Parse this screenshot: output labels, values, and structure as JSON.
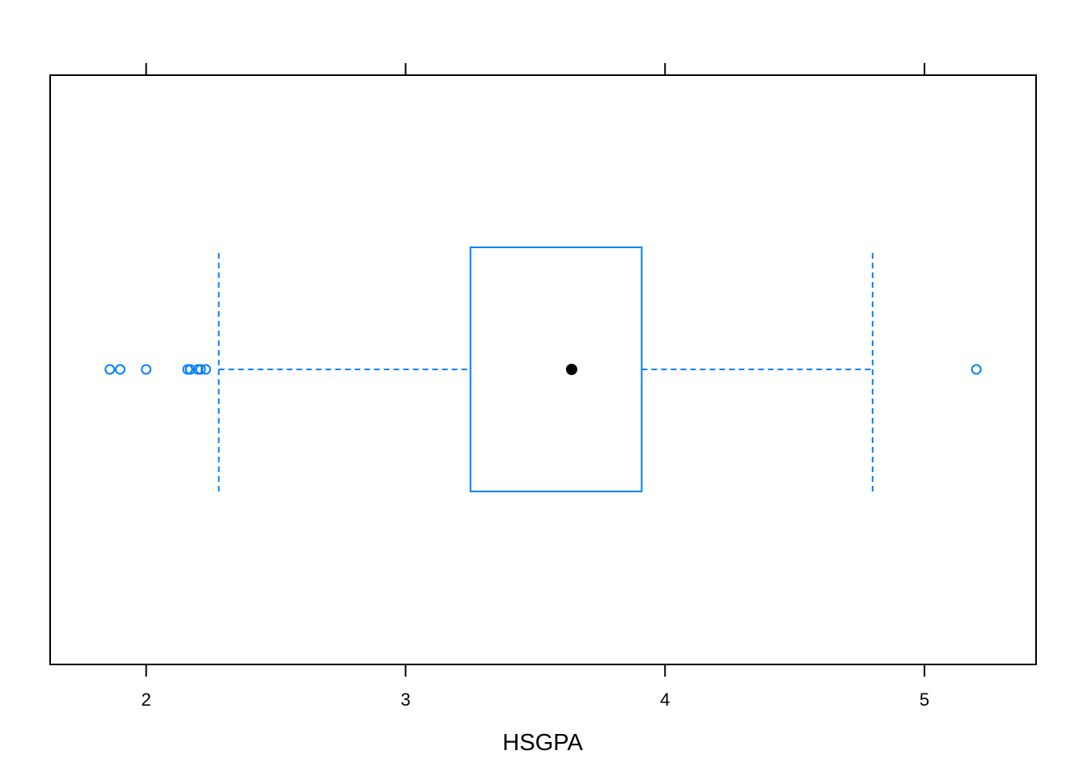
{
  "chart_data": {
    "type": "boxplot",
    "title": "",
    "xlabel": "HSGPA",
    "ylabel": "",
    "xlim": [
      1.63,
      5.43
    ],
    "x_ticks": [
      2,
      3,
      4,
      5
    ],
    "x_tick_labels": [
      "2",
      "3",
      "4",
      "5"
    ],
    "grid": false,
    "box": {
      "whisker_low": 2.28,
      "q1": 3.25,
      "median": 3.64,
      "q3": 3.91,
      "whisker_high": 4.8
    },
    "outliers": [
      1.86,
      1.9,
      2.0,
      2.16,
      2.17,
      2.2,
      2.21,
      2.23,
      5.2
    ],
    "colors": {
      "box": "#0080ff",
      "median": "#000000",
      "frame": "#000000"
    }
  }
}
